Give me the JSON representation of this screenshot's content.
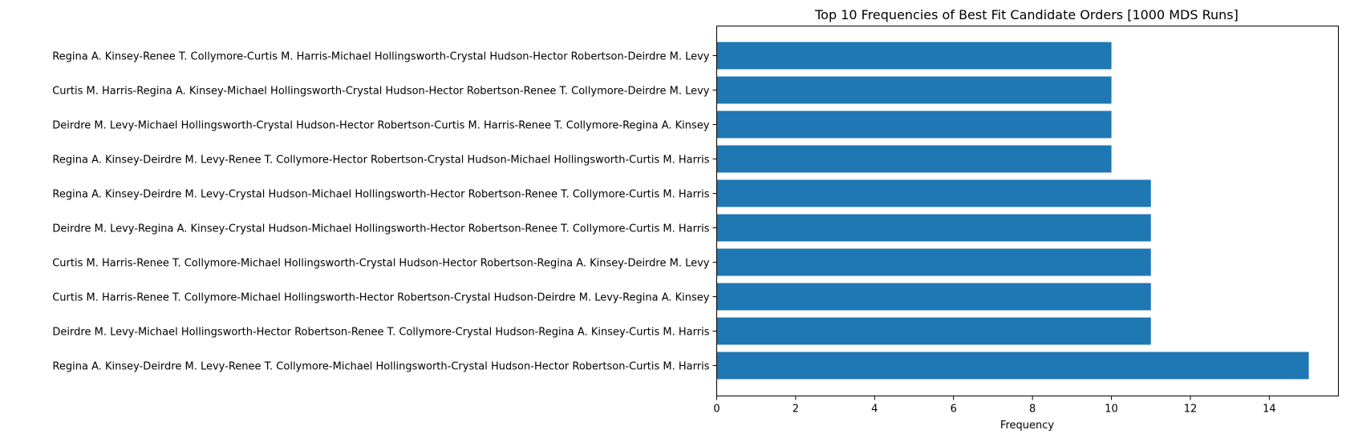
{
  "chart_data": {
    "type": "bar",
    "orientation": "horizontal",
    "title": "Top 10 Frequencies of Best Fit Candidate Orders [1000 MDS Runs]",
    "xlabel": "Frequency",
    "ylabel": "",
    "xlim": [
      0,
      15.75
    ],
    "xticks": [
      0,
      2,
      4,
      6,
      8,
      10,
      12,
      14
    ],
    "xtick_labels": [
      "0",
      "2",
      "4",
      "6",
      "8",
      "10",
      "12",
      "14"
    ],
    "grid": false,
    "legend": "none",
    "bar_color": "#1f77b4",
    "categories": [
      "Regina A. Kinsey-Deirdre M. Levy-Renee T. Collymore-Michael Hollingsworth-Crystal Hudson-Hector Robertson-Curtis M. Harris",
      "Deirdre M. Levy-Michael Hollingsworth-Hector Robertson-Renee T. Collymore-Crystal Hudson-Regina A. Kinsey-Curtis M. Harris",
      "Curtis M. Harris-Renee T. Collymore-Michael Hollingsworth-Hector Robertson-Crystal Hudson-Deirdre M. Levy-Regina A. Kinsey",
      "Curtis M. Harris-Renee T. Collymore-Michael Hollingsworth-Crystal Hudson-Hector Robertson-Regina A. Kinsey-Deirdre M. Levy",
      "Deirdre M. Levy-Regina A. Kinsey-Crystal Hudson-Michael Hollingsworth-Hector Robertson-Renee T. Collymore-Curtis M. Harris",
      "Regina A. Kinsey-Deirdre M. Levy-Crystal Hudson-Michael Hollingsworth-Hector Robertson-Renee T. Collymore-Curtis M. Harris",
      "Regina A. Kinsey-Deirdre M. Levy-Renee T. Collymore-Hector Robertson-Crystal Hudson-Michael Hollingsworth-Curtis M. Harris",
      "Deirdre M. Levy-Michael Hollingsworth-Crystal Hudson-Hector Robertson-Curtis M. Harris-Renee T. Collymore-Regina A. Kinsey",
      "Curtis M. Harris-Regina A. Kinsey-Michael Hollingsworth-Crystal Hudson-Hector Robertson-Renee T. Collymore-Deirdre M. Levy",
      "Regina A. Kinsey-Renee T. Collymore-Curtis M. Harris-Michael Hollingsworth-Crystal Hudson-Hector Robertson-Deirdre M. Levy"
    ],
    "values": [
      15,
      11,
      11,
      11,
      11,
      11,
      10,
      10,
      10,
      10
    ]
  }
}
